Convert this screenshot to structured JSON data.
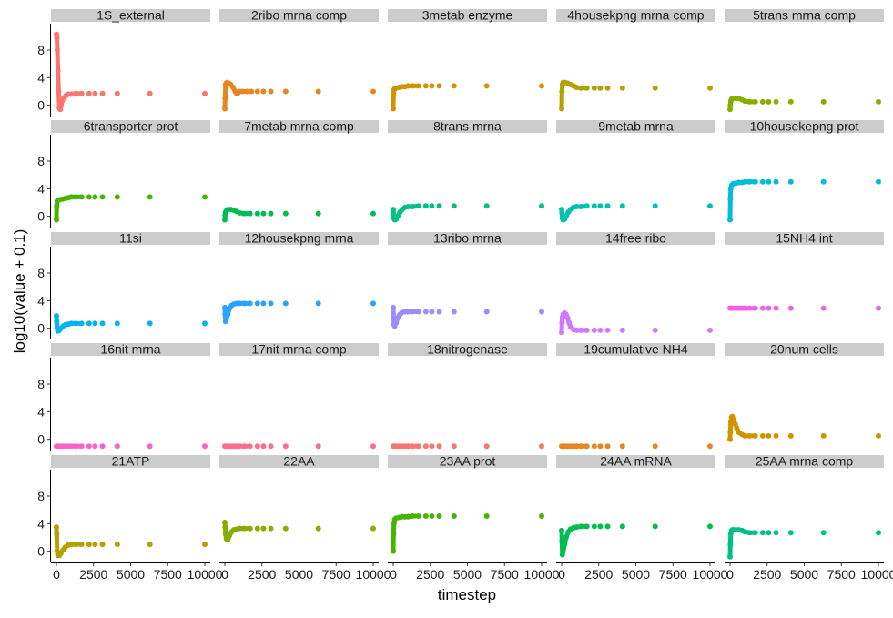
{
  "chart_data": {
    "type": "scatter",
    "layout": "facet-grid",
    "xlabel": "timestep",
    "ylabel": "log10(value + 0.1)",
    "xlim": [
      0,
      10000
    ],
    "ylim": [
      -1.1,
      11.3
    ],
    "x_ticks": [
      0,
      2500,
      5000,
      7500,
      10000
    ],
    "x_tick_labels": [
      "0",
      "2500",
      "5000",
      "7500",
      "10000"
    ],
    "y_ticks": [
      0,
      4,
      8
    ],
    "y_tick_labels": [
      "0",
      "4",
      "8"
    ],
    "grid": false,
    "legend": "none",
    "facets": [
      {
        "name": "1S_external",
        "color": "#F8766D",
        "x": [
          0,
          30,
          60,
          100,
          150,
          200,
          260,
          320,
          400,
          500,
          650,
          800,
          1000,
          1300,
          1700,
          2200,
          2600,
          3100,
          4100,
          6300,
          10000
        ],
        "y": [
          10.3,
          9.8,
          8.0,
          5.0,
          2.0,
          -0.4,
          -0.6,
          0.0,
          0.7,
          1.1,
          1.4,
          1.6,
          1.6,
          1.7,
          1.7,
          1.7,
          1.7,
          1.7,
          1.7,
          1.7,
          1.7
        ]
      },
      {
        "name": "2ribo mrna comp",
        "color": "#E7851E",
        "x": [
          0,
          20,
          50,
          100,
          150,
          250,
          400,
          550,
          700,
          800,
          900,
          1000,
          1200,
          1500,
          1800,
          2200,
          2600,
          3100,
          4100,
          6300,
          10000
        ],
        "y": [
          -0.5,
          1.0,
          3.0,
          3.2,
          3.3,
          3.2,
          3.0,
          2.6,
          2.0,
          1.7,
          1.8,
          2.0,
          2.0,
          2.0,
          2.0,
          2.0,
          2.0,
          2.0,
          2.0,
          2.0,
          2.0
        ]
      },
      {
        "name": "3metab enzyme",
        "color": "#D09400",
        "x": [
          0,
          20,
          50,
          100,
          200,
          400,
          600,
          800,
          1000,
          1300,
          1700,
          2200,
          2600,
          3100,
          4100,
          6300,
          10000
        ],
        "y": [
          -0.5,
          1.5,
          2.2,
          2.4,
          2.5,
          2.6,
          2.7,
          2.7,
          2.8,
          2.8,
          2.8,
          2.8,
          2.8,
          2.8,
          2.8,
          2.8,
          2.8
        ]
      },
      {
        "name": "4housekpng mrna comp",
        "color": "#B2A100",
        "x": [
          0,
          20,
          50,
          100,
          200,
          400,
          600,
          800,
          1000,
          1300,
          1700,
          2200,
          2600,
          3100,
          4100,
          6300,
          10000
        ],
        "y": [
          -0.5,
          2.0,
          3.0,
          3.3,
          3.3,
          3.2,
          3.0,
          2.8,
          2.6,
          2.5,
          2.5,
          2.5,
          2.5,
          2.5,
          2.5,
          2.5,
          2.5
        ]
      },
      {
        "name": "5trans mrna comp",
        "color": "#89AC00",
        "x": [
          0,
          20,
          50,
          100,
          200,
          400,
          600,
          800,
          1000,
          1300,
          1700,
          2200,
          2600,
          3100,
          4100,
          6300,
          10000
        ],
        "y": [
          -0.6,
          0.0,
          0.6,
          0.9,
          1.0,
          1.0,
          1.0,
          0.8,
          0.6,
          0.5,
          0.5,
          0.5,
          0.5,
          0.5,
          0.5,
          0.5,
          0.5
        ]
      },
      {
        "name": "6transporter prot",
        "color": "#45B500",
        "x": [
          0,
          20,
          50,
          100,
          200,
          400,
          600,
          800,
          1000,
          1300,
          1700,
          2200,
          2600,
          3100,
          4100,
          6300,
          10000
        ],
        "y": [
          -0.5,
          1.5,
          2.2,
          2.3,
          2.4,
          2.5,
          2.6,
          2.7,
          2.8,
          2.8,
          2.8,
          2.8,
          2.8,
          2.8,
          2.8,
          2.8,
          2.8
        ]
      },
      {
        "name": "7metab mrna comp",
        "color": "#00BC51",
        "x": [
          0,
          20,
          50,
          100,
          200,
          400,
          600,
          800,
          1000,
          1300,
          1700,
          2200,
          2600,
          3100,
          4100,
          6300,
          10000
        ],
        "y": [
          -0.5,
          0.2,
          0.6,
          0.8,
          1.0,
          1.0,
          0.9,
          0.7,
          0.5,
          0.4,
          0.4,
          0.4,
          0.4,
          0.4,
          0.4,
          0.4,
          0.4
        ]
      },
      {
        "name": "8trans mrna",
        "color": "#00C087",
        "x": [
          0,
          20,
          50,
          100,
          200,
          300,
          450,
          600,
          800,
          1000,
          1300,
          1700,
          2200,
          2600,
          3100,
          4100,
          6300,
          10000
        ],
        "y": [
          1.0,
          0.5,
          -0.3,
          -0.5,
          -0.4,
          0.0,
          0.6,
          1.0,
          1.3,
          1.4,
          1.4,
          1.5,
          1.5,
          1.5,
          1.5,
          1.5,
          1.5,
          1.5
        ]
      },
      {
        "name": "9metab mrna",
        "color": "#00C0B2",
        "x": [
          0,
          20,
          50,
          100,
          200,
          300,
          450,
          600,
          800,
          1000,
          1300,
          1700,
          2200,
          2600,
          3100,
          4100,
          6300,
          10000
        ],
        "y": [
          1.0,
          0.5,
          -0.3,
          -0.5,
          -0.4,
          0.0,
          0.6,
          1.0,
          1.3,
          1.4,
          1.4,
          1.5,
          1.5,
          1.5,
          1.5,
          1.5,
          1.5,
          1.5
        ]
      },
      {
        "name": "10housekepng prot",
        "color": "#00BCD6",
        "x": [
          0,
          20,
          50,
          100,
          200,
          400,
          600,
          800,
          1000,
          1300,
          1700,
          2200,
          2600,
          3100,
          4100,
          6300,
          10000
        ],
        "y": [
          -0.5,
          2.5,
          4.0,
          4.5,
          4.7,
          4.8,
          4.9,
          4.9,
          5.0,
          5.0,
          5.0,
          5.0,
          5.0,
          5.0,
          5.0,
          5.0,
          5.0
        ]
      },
      {
        "name": "11si",
        "color": "#00B3F2",
        "x": [
          0,
          20,
          50,
          100,
          200,
          300,
          450,
          600,
          800,
          1000,
          1300,
          1700,
          2200,
          2600,
          3100,
          4100,
          6300,
          10000
        ],
        "y": [
          1.8,
          1.0,
          0.0,
          -0.4,
          -0.3,
          0.0,
          0.3,
          0.5,
          0.6,
          0.7,
          0.7,
          0.7,
          0.7,
          0.7,
          0.7,
          0.7,
          0.7,
          0.7
        ]
      },
      {
        "name": "12housekpng mrna",
        "color": "#29A3FF",
        "x": [
          0,
          20,
          50,
          100,
          200,
          300,
          450,
          600,
          800,
          1000,
          1300,
          1700,
          2200,
          2600,
          3100,
          4100,
          6300,
          10000
        ],
        "y": [
          3.0,
          2.0,
          1.0,
          1.3,
          2.0,
          2.8,
          3.3,
          3.5,
          3.6,
          3.6,
          3.6,
          3.6,
          3.6,
          3.6,
          3.6,
          3.6,
          3.6,
          3.6
        ]
      },
      {
        "name": "13ribo mrna",
        "color": "#9C8DFF",
        "x": [
          0,
          20,
          50,
          100,
          200,
          300,
          450,
          600,
          800,
          1000,
          1300,
          1700,
          2200,
          2600,
          3100,
          4100,
          6300,
          10000
        ],
        "y": [
          3.0,
          2.0,
          0.5,
          0.3,
          0.8,
          1.5,
          2.0,
          2.3,
          2.4,
          2.4,
          2.4,
          2.4,
          2.4,
          2.4,
          2.4,
          2.4,
          2.4,
          2.4
        ]
      },
      {
        "name": "14free ribo",
        "color": "#D277FF",
        "x": [
          0,
          20,
          50,
          100,
          200,
          300,
          400,
          500,
          600,
          800,
          1000,
          1300,
          1700,
          2200,
          2600,
          3100,
          4100,
          6300,
          10000
        ],
        "y": [
          -0.6,
          0.8,
          1.6,
          2.0,
          2.2,
          2.0,
          1.5,
          0.8,
          0.2,
          -0.2,
          -0.3,
          -0.3,
          -0.3,
          -0.3,
          -0.3,
          -0.3,
          -0.3,
          -0.3,
          -0.3
        ]
      },
      {
        "name": "15NH4 int",
        "color": "#F161E6",
        "x": [
          0,
          100,
          200,
          400,
          600,
          800,
          1000,
          1300,
          1700,
          2200,
          2600,
          3100,
          4100,
          6300,
          10000
        ],
        "y": [
          2.9,
          2.9,
          2.9,
          2.9,
          2.9,
          2.9,
          2.9,
          2.9,
          2.9,
          2.9,
          2.9,
          2.9,
          2.9,
          2.9,
          2.9
        ]
      },
      {
        "name": "16nit mrna",
        "color": "#FC61C9",
        "x": [
          0,
          100,
          200,
          400,
          600,
          800,
          1000,
          1300,
          1700,
          2200,
          2600,
          3100,
          4100,
          6300,
          10000
        ],
        "y": [
          -1.0,
          -1.0,
          -1.0,
          -1.0,
          -1.0,
          -1.0,
          -1.0,
          -1.0,
          -1.0,
          -1.0,
          -1.0,
          -1.0,
          -1.0,
          -1.0,
          -1.0
        ]
      },
      {
        "name": "17nit mrna comp",
        "color": "#FF6C91",
        "x": [
          0,
          100,
          200,
          400,
          600,
          800,
          1000,
          1300,
          1700,
          2200,
          2600,
          3100,
          4100,
          6300,
          10000
        ],
        "y": [
          -1.0,
          -1.0,
          -1.0,
          -1.0,
          -1.0,
          -1.0,
          -1.0,
          -1.0,
          -1.0,
          -1.0,
          -1.0,
          -1.0,
          -1.0,
          -1.0,
          -1.0
        ]
      },
      {
        "name": "18nitrogenase",
        "color": "#F8766D",
        "x": [
          0,
          100,
          200,
          400,
          600,
          800,
          1000,
          1300,
          1700,
          2200,
          2600,
          3100,
          4100,
          6300,
          10000
        ],
        "y": [
          -1.0,
          -1.0,
          -1.0,
          -1.0,
          -1.0,
          -1.0,
          -1.0,
          -1.0,
          -1.0,
          -1.0,
          -1.0,
          -1.0,
          -1.0,
          -1.0,
          -1.0
        ]
      },
      {
        "name": "19cumulative NH4",
        "color": "#E7851E",
        "x": [
          0,
          100,
          200,
          400,
          600,
          800,
          1000,
          1300,
          1700,
          2200,
          2600,
          3100,
          4100,
          6300,
          10000
        ],
        "y": [
          -1.0,
          -1.0,
          -1.0,
          -1.0,
          -1.0,
          -1.0,
          -1.0,
          -1.0,
          -1.0,
          -1.0,
          -1.0,
          -1.0,
          -1.0,
          -1.0,
          -1.0
        ]
      },
      {
        "name": "20num cells",
        "color": "#D09400",
        "x": [
          0,
          20,
          50,
          100,
          150,
          250,
          350,
          450,
          600,
          800,
          1000,
          1300,
          1700,
          2200,
          2600,
          3100,
          4100,
          6300,
          10000
        ],
        "y": [
          0.0,
          1.0,
          2.5,
          3.2,
          3.3,
          2.8,
          2.2,
          1.6,
          1.0,
          0.7,
          0.5,
          0.5,
          0.5,
          0.5,
          0.5,
          0.5,
          0.5,
          0.5,
          0.5
        ]
      },
      {
        "name": "21ATP",
        "color": "#B2A100",
        "x": [
          0,
          20,
          50,
          100,
          200,
          300,
          450,
          600,
          800,
          1000,
          1300,
          1700,
          2200,
          2600,
          3100,
          4100,
          6300,
          10000
        ],
        "y": [
          3.5,
          2.5,
          0.0,
          -0.6,
          -0.6,
          -0.3,
          0.2,
          0.6,
          0.9,
          1.0,
          1.0,
          1.0,
          1.0,
          1.0,
          1.0,
          1.0,
          1.0,
          1.0
        ]
      },
      {
        "name": "22AA",
        "color": "#89AC00",
        "x": [
          0,
          20,
          50,
          100,
          200,
          300,
          450,
          600,
          800,
          1000,
          1300,
          1700,
          2200,
          2600,
          3100,
          4100,
          6300,
          10000
        ],
        "y": [
          4.2,
          3.5,
          2.5,
          1.8,
          1.7,
          2.2,
          2.8,
          3.1,
          3.2,
          3.3,
          3.3,
          3.3,
          3.3,
          3.3,
          3.3,
          3.3,
          3.3,
          3.3
        ]
      },
      {
        "name": "23AA prot",
        "color": "#45B500",
        "x": [
          0,
          20,
          50,
          100,
          200,
          400,
          600,
          800,
          1000,
          1300,
          1700,
          2200,
          2600,
          3100,
          4100,
          6300,
          10000
        ],
        "y": [
          0.0,
          2.5,
          4.0,
          4.6,
          4.8,
          4.9,
          5.0,
          5.0,
          5.0,
          5.1,
          5.1,
          5.1,
          5.1,
          5.1,
          5.1,
          5.1,
          5.1
        ]
      },
      {
        "name": "24AA mRNA",
        "color": "#00BC51",
        "x": [
          0,
          20,
          50,
          100,
          200,
          300,
          450,
          600,
          800,
          1000,
          1300,
          1700,
          2200,
          2600,
          3100,
          4100,
          6300,
          10000
        ],
        "y": [
          3.0,
          1.5,
          -0.5,
          0.0,
          1.0,
          2.0,
          2.8,
          3.2,
          3.4,
          3.5,
          3.6,
          3.6,
          3.6,
          3.6,
          3.6,
          3.6,
          3.6,
          3.6
        ]
      },
      {
        "name": "25AA mrna comp",
        "color": "#00C087",
        "x": [
          0,
          20,
          50,
          100,
          150,
          250,
          400,
          600,
          800,
          1000,
          1300,
          1700,
          2200,
          2600,
          3100,
          4100,
          6300,
          10000
        ],
        "y": [
          -0.8,
          1.0,
          2.5,
          3.0,
          3.1,
          3.1,
          3.1,
          3.1,
          3.0,
          2.8,
          2.7,
          2.7,
          2.7,
          2.7,
          2.7,
          2.7,
          2.7,
          2.7
        ]
      }
    ]
  }
}
